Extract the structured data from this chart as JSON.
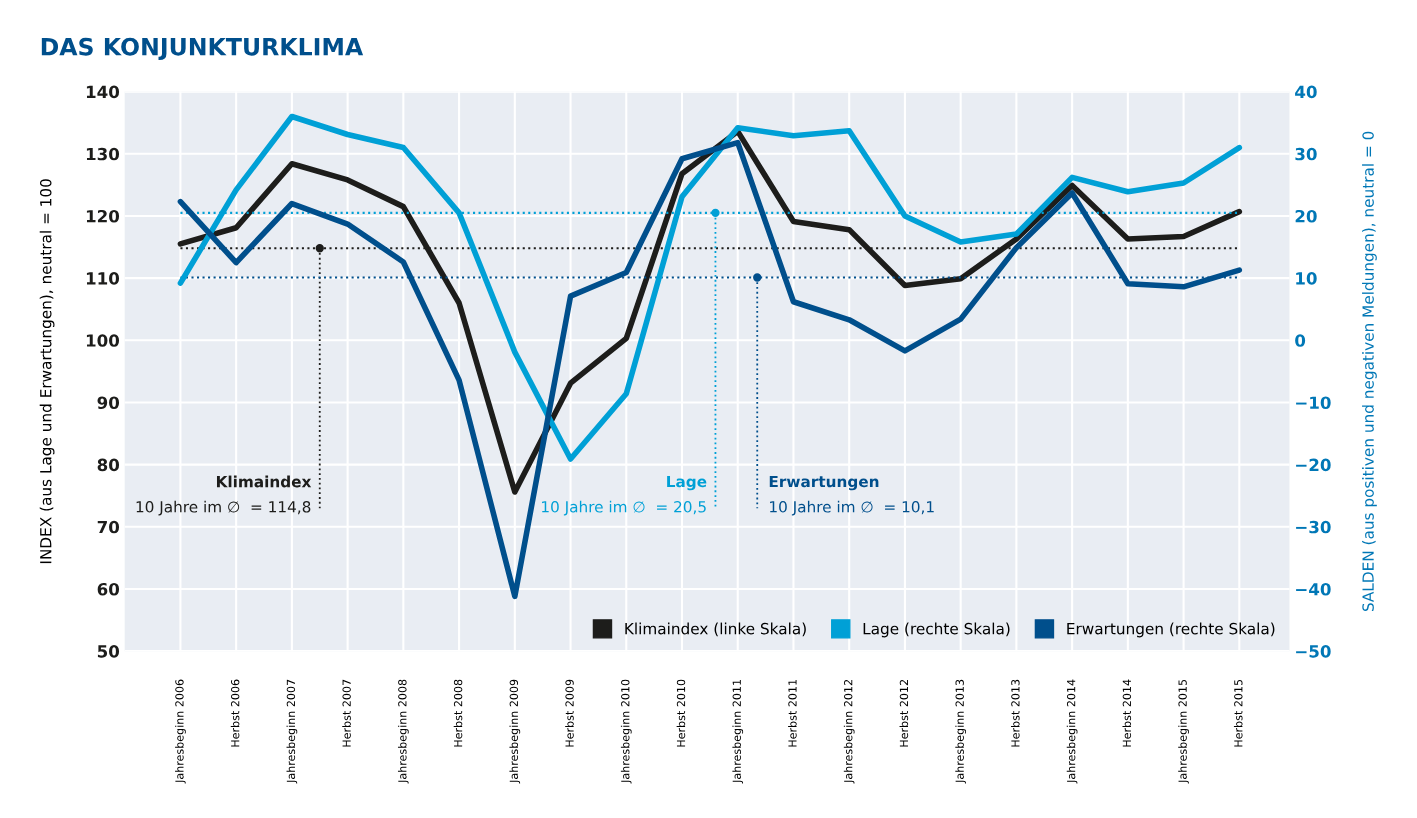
{
  "chart_data": {
    "type": "line",
    "title": "DAS KONJUNKTURKLIMA",
    "ylabel": "INDEX (aus Lage und Erwartungen), neutral = 100",
    "y2label": "SALDEN (aus positiven und negativen Meldungen), neutral = 0",
    "categories": [
      "Jahresbeginn 2006",
      "Herbst 2006",
      "Jahresbeginn 2007",
      "Herbst 2007",
      "Jahresbeginn 2008",
      "Herbst 2008",
      "Jahresbeginn 2009",
      "Herbst 2009",
      "Jahresbeginn 2010",
      "Herbst 2010",
      "Jahresbeginn 2011",
      "Herbst 2011",
      "Jahresbeginn 2012",
      "Herbst 2012",
      "Jahresbeginn 2013",
      "Herbst 2013",
      "Jahresbeginn 2014",
      "Herbst 2014",
      "Jahresbeginn 2015",
      "Herbst 2015"
    ],
    "series": [
      {
        "name": "Klimaindex (linke Skala)",
        "color": "#1d1d1b",
        "values": [
          115.5,
          118.1,
          128.4,
          125.8,
          121.5,
          106.0,
          75.6,
          93.1,
          100.3,
          126.8,
          133.6,
          119.1,
          117.8,
          108.8,
          109.9,
          116.3,
          124.9,
          116.3,
          116.7,
          120.7
        ]
      },
      {
        "name": "Lage (rechte Skala)",
        "color": "#00a0d6",
        "axis": "y2",
        "values": [
          9.2,
          24.2,
          36.0,
          33.1,
          31.0,
          20.5,
          -1.9,
          -19.1,
          -8.6,
          23.1,
          34.2,
          32.9,
          33.7,
          20.0,
          15.8,
          17.1,
          26.2,
          23.9,
          25.3,
          31.0
        ]
      },
      {
        "name": "Erwartungen (rechte Skala)",
        "color": "#004f8c",
        "axis": "y2",
        "values": [
          22.3,
          12.5,
          22.0,
          18.7,
          12.6,
          -6.4,
          -41.2,
          7.1,
          10.9,
          29.2,
          31.8,
          6.2,
          3.3,
          -1.7,
          3.4,
          14.9,
          23.7,
          9.1,
          8.6,
          11.3
        ]
      }
    ],
    "ylim": [
      50,
      140
    ],
    "yticks": [
      50,
      60,
      70,
      80,
      90,
      100,
      110,
      120,
      130,
      140
    ],
    "y2lim": [
      -50,
      40
    ],
    "y2ticks": [
      -50,
      -40,
      -30,
      -20,
      -10,
      0,
      10,
      20,
      30,
      40
    ],
    "ref_lines": [
      {
        "axis": "y",
        "value": 114.8,
        "label": "Klimaindex\n10 Jahre im ∅  = 114,8",
        "color": "#1d1d1b",
        "line_style": "dotted"
      },
      {
        "axis": "y2",
        "value": 20.5,
        "label": "Lage\n10 Jahre im ∅  = 20,5",
        "color": "#00a0d6",
        "line_style": "dotted"
      },
      {
        "axis": "y2",
        "value": 10.1,
        "label": "Erwartungen\n10 Jahre im ∅  = 10,1",
        "color": "#004f8c",
        "line_style": "dotted"
      }
    ],
    "grid": true,
    "legend": "bottom right",
    "marker": "none",
    "line_style": "solid"
  }
}
